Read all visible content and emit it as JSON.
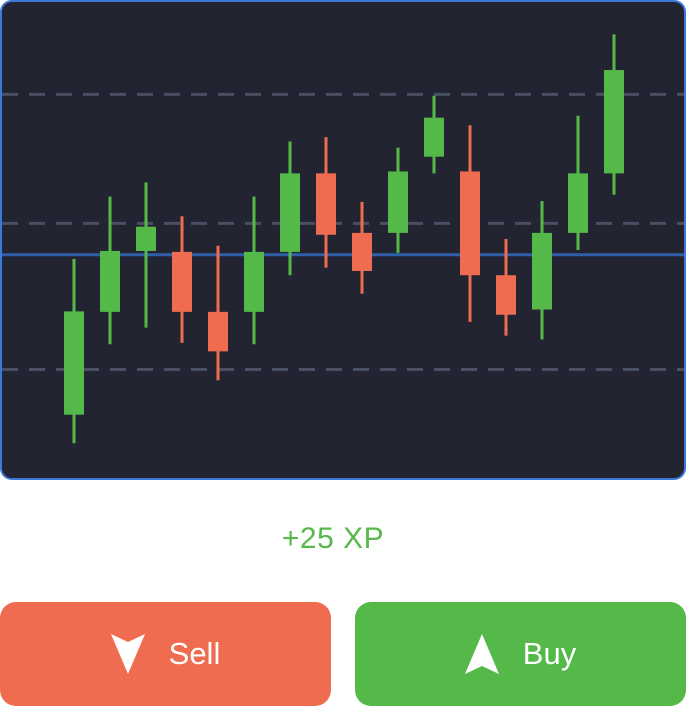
{
  "reward": {
    "text": "+25 XP"
  },
  "actions": {
    "sell": {
      "label": "Sell",
      "icon": "arrow-down-icon",
      "color": "#ef6c50"
    },
    "buy": {
      "label": "Buy",
      "icon": "arrow-up-icon",
      "color": "#55b94a"
    }
  },
  "chart_data": {
    "type": "candlestick",
    "colors": {
      "up": "#55b94a",
      "down": "#ef6c50",
      "background": "#222431",
      "price_line": "#2f5fa8",
      "grid": "#4a5063"
    },
    "ylim": [
      0,
      100
    ],
    "grid_levels": [
      80.6,
      53.5,
      22.8
    ],
    "price_line": 46.9,
    "candles": [
      {
        "open": 13.3,
        "close": 35.0,
        "high": 46.0,
        "low": 7.3
      },
      {
        "open": 34.9,
        "close": 47.7,
        "high": 59.1,
        "low": 28.1
      },
      {
        "open": 47.7,
        "close": 52.8,
        "high": 62.1,
        "low": 31.6
      },
      {
        "open": 47.5,
        "close": 34.9,
        "high": 55.0,
        "low": 28.4
      },
      {
        "open": 34.9,
        "close": 26.6,
        "high": 48.8,
        "low": 20.5
      },
      {
        "open": 34.9,
        "close": 47.5,
        "high": 59.1,
        "low": 28.1
      },
      {
        "open": 47.5,
        "close": 64.0,
        "high": 70.7,
        "low": 42.6
      },
      {
        "open": 64.0,
        "close": 51.1,
        "high": 71.6,
        "low": 44.2
      },
      {
        "open": 51.5,
        "close": 43.5,
        "high": 58.0,
        "low": 38.7
      },
      {
        "open": 51.5,
        "close": 64.4,
        "high": 69.4,
        "low": 47.3
      },
      {
        "open": 67.5,
        "close": 75.7,
        "high": 80.3,
        "low": 64.0
      },
      {
        "open": 64.4,
        "close": 42.6,
        "high": 74.1,
        "low": 32.8
      },
      {
        "open": 42.6,
        "close": 34.3,
        "high": 50.2,
        "low": 29.9
      },
      {
        "open": 35.4,
        "close": 51.5,
        "high": 58.2,
        "low": 29.1
      },
      {
        "open": 51.5,
        "close": 64.0,
        "high": 76.1,
        "low": 47.9
      },
      {
        "open": 64.0,
        "close": 85.7,
        "high": 93.2,
        "low": 59.5
      }
    ]
  }
}
